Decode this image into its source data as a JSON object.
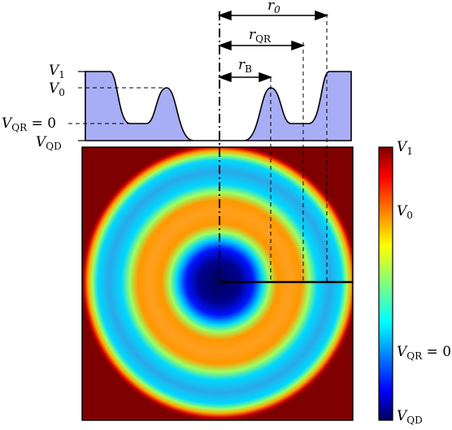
{
  "labels": {
    "r0": "r",
    "r0_sub": "0",
    "rqr": "r",
    "rqr_sub": "QR",
    "rb": "r",
    "rb_sub": "B",
    "v1": "V",
    "v1_sub": "1",
    "v0": "V",
    "v0_sub": "0",
    "vqr": "V",
    "vqr_sub": "QR",
    "vqr_eq": " = 0",
    "vqd": "V",
    "vqd_sub": "QD"
  },
  "colorbar": {
    "v1": "V",
    "v1_sub": "1",
    "v0": "V",
    "v0_sub": "0",
    "vqr": "V",
    "vqr_sub": "QR",
    "vqr_eq": " = 0",
    "vqd": "V",
    "vqd_sub": "QD"
  },
  "colors": {
    "profile_fill": "#a8aef5",
    "map_background": "#7f0000",
    "ring": "#2aa8e8",
    "orange_ring": "#ffa020",
    "center": "#00005a"
  }
}
